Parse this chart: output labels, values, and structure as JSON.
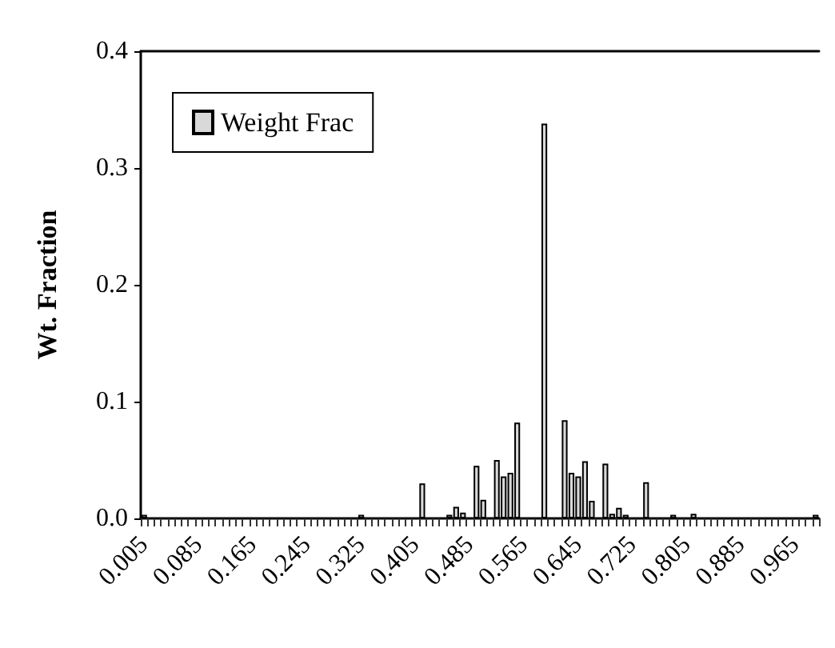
{
  "chart_data": {
    "type": "bar",
    "ylabel": "Wt. Fraction",
    "categories": [
      "0.005",
      null,
      null,
      null,
      null,
      null,
      null,
      null,
      "0.085",
      null,
      null,
      null,
      null,
      null,
      null,
      null,
      "0.165",
      null,
      null,
      null,
      null,
      null,
      null,
      null,
      "0.245",
      null,
      null,
      null,
      null,
      null,
      null,
      null,
      "0.325",
      null,
      null,
      null,
      null,
      null,
      null,
      null,
      "0.405",
      null,
      null,
      null,
      null,
      null,
      null,
      null,
      "0.485",
      null,
      null,
      null,
      null,
      null,
      null,
      null,
      "0.565",
      null,
      null,
      null,
      null,
      null,
      null,
      null,
      "0.645",
      null,
      null,
      null,
      null,
      null,
      null,
      null,
      "0.725",
      null,
      null,
      null,
      null,
      null,
      null,
      null,
      "0.805",
      null,
      null,
      null,
      null,
      null,
      null,
      null,
      "0.885",
      null,
      null,
      null,
      null,
      null,
      null,
      null,
      "0.965",
      null,
      null,
      null
    ],
    "series": [
      {
        "name": "Weight Frac",
        "color": "#d9d9d9",
        "values": [
          0.003,
          0,
          0,
          0,
          0,
          0,
          0,
          0,
          0,
          0,
          0,
          0,
          0,
          0,
          0,
          0,
          0,
          0,
          0,
          0,
          0,
          0,
          0,
          0,
          0,
          0,
          0,
          0,
          0,
          0,
          0,
          0,
          0.003,
          0,
          0,
          0,
          0,
          0,
          0,
          0,
          0,
          0.03,
          0,
          0,
          0,
          0.003,
          0.01,
          0.005,
          0,
          0.045,
          0.016,
          0,
          0.05,
          0.036,
          0.039,
          0.082,
          0,
          0,
          0,
          0.338,
          0,
          0,
          0.084,
          0.039,
          0.036,
          0.049,
          0.015,
          0,
          0.047,
          0.004,
          0.009,
          0.003,
          0,
          0,
          0.031,
          0,
          0,
          0,
          0.003,
          0,
          0,
          0.004,
          0,
          0,
          0,
          0,
          0,
          0,
          0,
          0,
          0,
          0,
          0,
          0,
          0,
          0,
          0,
          0,
          0,
          0.003
        ]
      }
    ],
    "ylim": [
      0,
      0.4
    ],
    "yticks": [
      {
        "value": 0,
        "label": "0.0"
      },
      {
        "value": 0.1,
        "label": "0.1"
      },
      {
        "value": 0.2,
        "label": "0.2"
      },
      {
        "value": 0.3,
        "label": "0.3"
      },
      {
        "value": 0.4,
        "label": "0.4"
      }
    ],
    "grid": false,
    "legend": "top left"
  }
}
